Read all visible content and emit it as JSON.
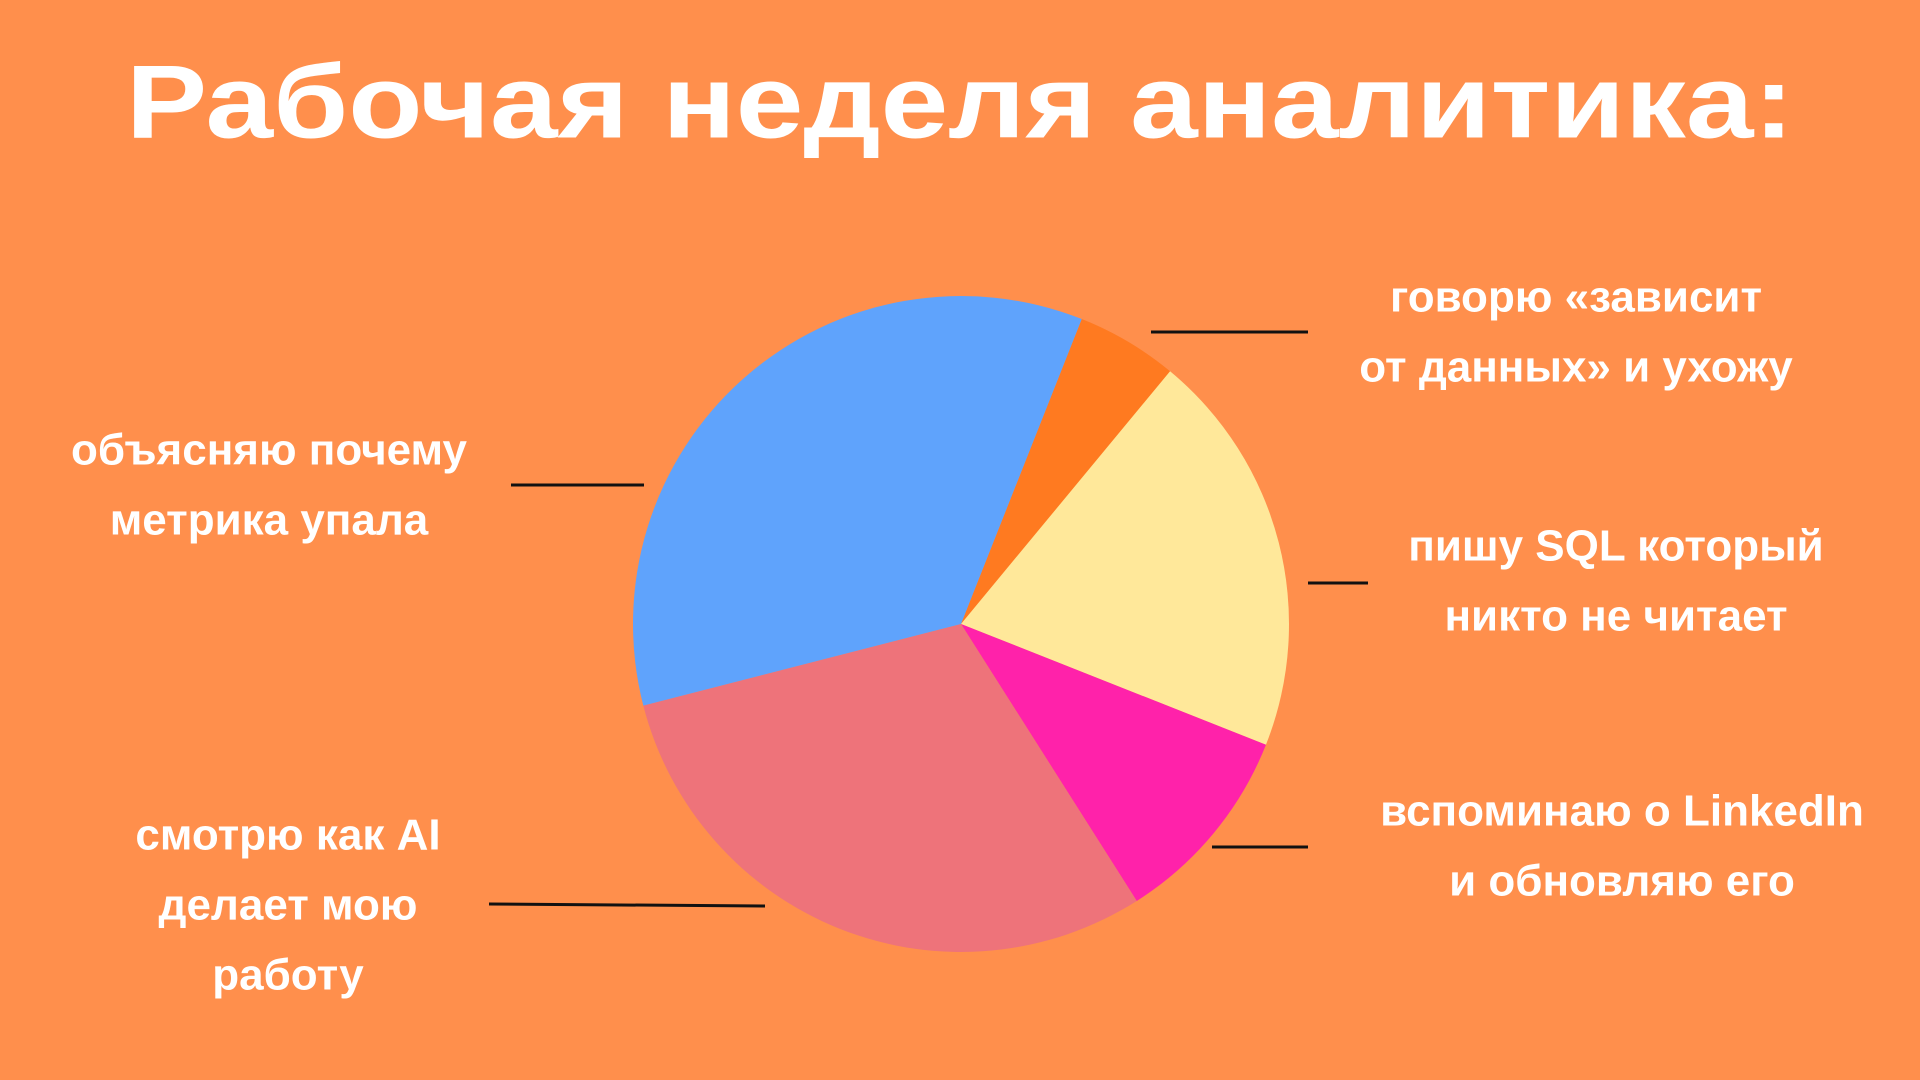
{
  "chart_data": {
    "type": "pie",
    "title": "Рабочая неделя аналитика:",
    "categories": [
      [
        "говорю «зависит",
        "от данных» и ухожу"
      ],
      [
        "пишу SQL который",
        "никто не читает"
      ],
      [
        "вспоминаю о LinkedIn",
        "и обновляю его"
      ],
      [
        "смотрю как AI",
        "делает мою",
        "работу"
      ],
      [
        "объясняю почему",
        "метрика упала"
      ]
    ],
    "values": [
      5,
      20,
      10,
      30,
      35
    ],
    "colors": [
      "#ff7a20",
      "#ffe89a",
      "#ff22aa",
      "#ee737a",
      "#5fa3fc"
    ]
  }
}
